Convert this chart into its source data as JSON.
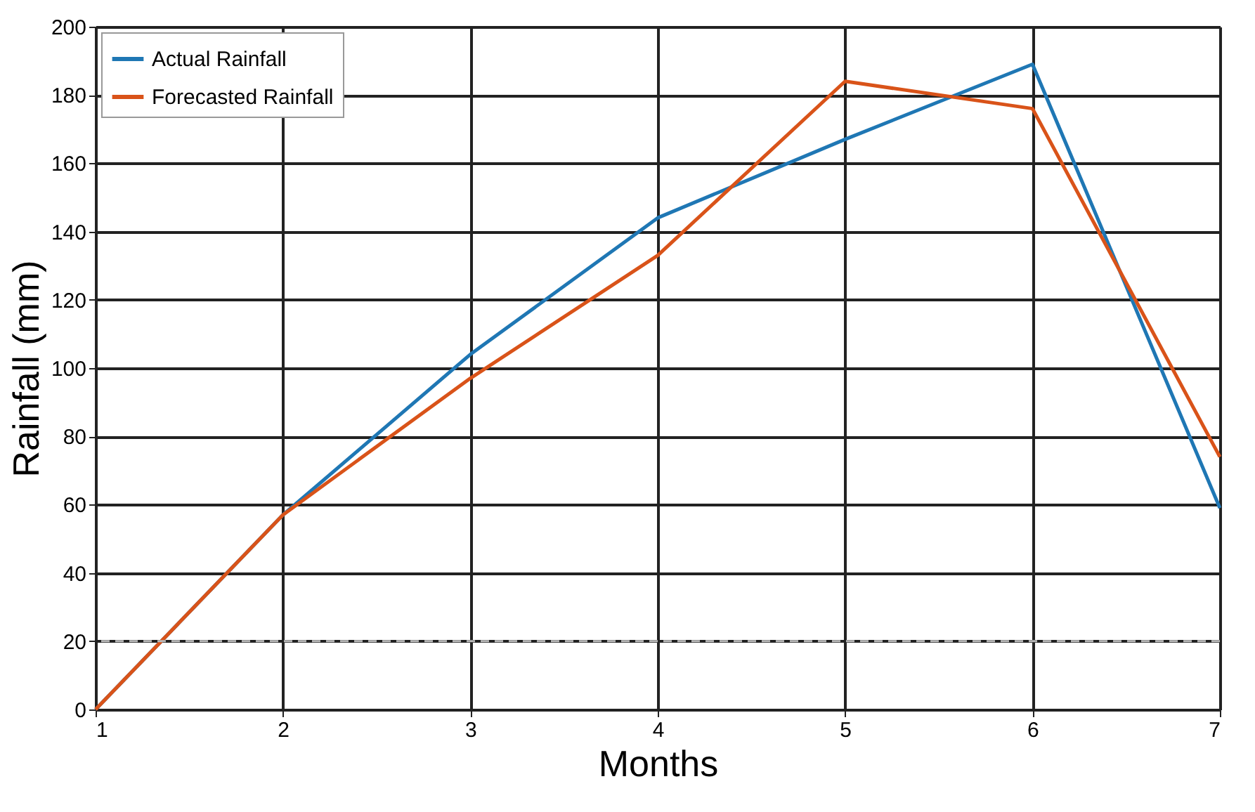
{
  "chart_data": {
    "type": "line",
    "xlabel": "Months",
    "ylabel": "Rainfall (mm)",
    "x": [
      1,
      2,
      3,
      4,
      5,
      6,
      7
    ],
    "series": [
      {
        "name": "Actual Rainfall",
        "color": "#1f77b4",
        "values": [
          0,
          57,
          104,
          144,
          167,
          189,
          59
        ]
      },
      {
        "name": "Forecasted Rainfall",
        "color": "#d95319",
        "values": [
          0,
          57,
          97,
          133,
          184,
          176,
          74
        ]
      }
    ],
    "xlim": [
      1,
      7
    ],
    "xticks": [
      1,
      2,
      3,
      4,
      5,
      6,
      7
    ],
    "ylim": [
      0,
      200
    ],
    "yticks": [
      0,
      20,
      40,
      60,
      80,
      100,
      120,
      140,
      160,
      180,
      200
    ],
    "ref_lines": [
      {
        "axis": "y",
        "value": 20,
        "color": "#bbbbbb",
        "line_style": "dashed"
      }
    ],
    "grid": true,
    "legend": "top left",
    "marker": "none",
    "line_style": "solid"
  }
}
